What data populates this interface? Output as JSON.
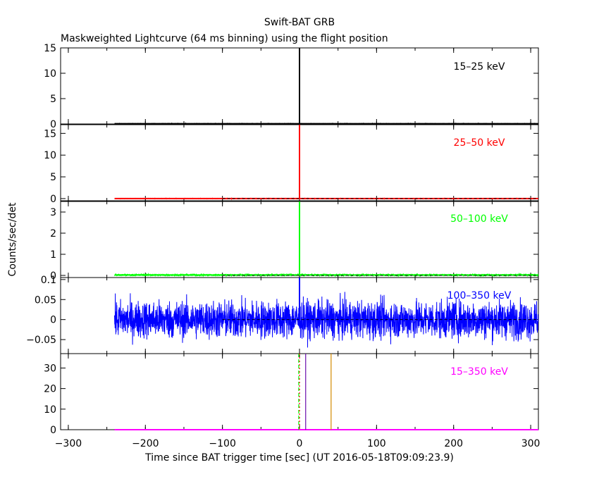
{
  "title": "Swift-BAT GRB",
  "subtitle": "Maskweighted Lightcurve (64 ms binning) using the flight position",
  "colors": {
    "axes": "#000000",
    "band_15_25": "#000000",
    "band_25_50": "#ff0000",
    "band_50_100": "#00ff00",
    "band_100_350": "#0000ff",
    "band_15_350": "#ff00ff",
    "marker_purple": "#6a0dad",
    "marker_orange": "#d48a00"
  },
  "chart_data": {
    "type": "line",
    "xlabel": "Time since BAT trigger time [sec] (UT 2016-05-18T09:09:23.9)",
    "ylabel": "Counts/sec/det",
    "xlim": [
      -310,
      310
    ],
    "x_ticks": [
      -300,
      -200,
      -100,
      0,
      100,
      200,
      300
    ],
    "data_start": -240,
    "panels": [
      {
        "name": "15-25 keV",
        "label": "15–25 keV",
        "color": "#000000",
        "ylim": [
          0,
          15
        ],
        "y_ticks": [
          0,
          5,
          10,
          15
        ],
        "baseline": 0.05,
        "noise": 0.05,
        "spike": {
          "x": 0,
          "y": 15
        }
      },
      {
        "name": "25-50 keV",
        "label": "25–50 keV",
        "color": "#ff0000",
        "ylim": [
          -0.5,
          17
        ],
        "y_ticks": [
          0,
          5,
          10,
          15
        ],
        "baseline": 0.0,
        "noise": 0.05,
        "spike": {
          "x": 0,
          "y": 17
        }
      },
      {
        "name": "50-100 keV",
        "label": "50–100 keV",
        "color": "#00ff00",
        "ylim": [
          -0.1,
          3.5
        ],
        "y_ticks": [
          0,
          1,
          2,
          3
        ],
        "baseline": 0.02,
        "noise": 0.04,
        "spike": {
          "x": 0,
          "y": 3.6
        }
      },
      {
        "name": "100-350 keV",
        "label": "100–350 keV",
        "color": "#0000ff",
        "ylim": [
          -0.085,
          0.105
        ],
        "y_ticks": [
          -0.05,
          0,
          0.05,
          0.1
        ],
        "y_tick_labels": [
          "−0.05",
          "0",
          "0.05",
          "0.1"
        ],
        "baseline": 0.0,
        "noise": 0.04,
        "spike": {
          "x": 0,
          "y": 0.11
        }
      },
      {
        "name": "15-350 keV",
        "label": "15–350 keV",
        "color": "#ff00ff",
        "ylim": [
          0,
          37
        ],
        "y_ticks": [
          0,
          10,
          20,
          30
        ],
        "baseline": 0.0,
        "noise": 0.0,
        "spike": null,
        "markers": [
          {
            "x": -1,
            "color": "#00ff00",
            "style": "dashed"
          },
          {
            "x": 0,
            "color": "#ff0000",
            "style": "dotted"
          },
          {
            "x": 8,
            "color": "#6a0dad",
            "style": "solid"
          },
          {
            "x": 41,
            "color": "#d48a00",
            "style": "solid"
          }
        ]
      }
    ]
  }
}
